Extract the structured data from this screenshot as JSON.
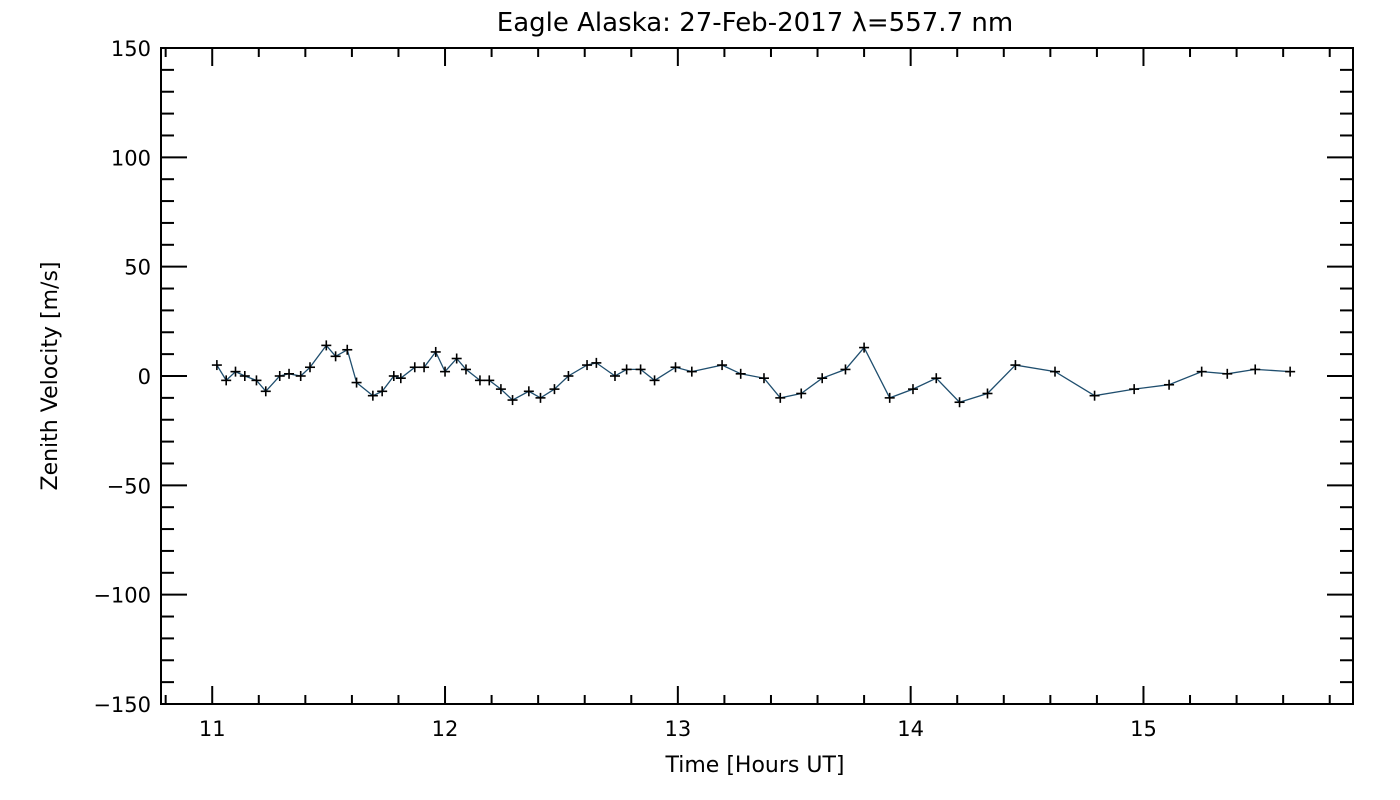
{
  "chart_data": {
    "type": "line",
    "title": "Eagle Alaska: 27-Feb-2017 λ=557.7 nm",
    "xlabel": "Time [Hours UT]",
    "ylabel": "Zenith Velocity [m/s]",
    "xlim": [
      10.78,
      15.9
    ],
    "ylim": [
      -150,
      150
    ],
    "x_ticks": [
      11,
      12,
      13,
      14,
      15
    ],
    "y_ticks": [
      -150,
      -100,
      -50,
      0,
      50,
      100,
      150
    ],
    "x_tick_labels": [
      "11",
      "12",
      "13",
      "14",
      "15"
    ],
    "y_tick_labels": [
      "−150",
      "−100",
      "−50",
      "0",
      "50",
      "100",
      "150"
    ],
    "grid": false,
    "line_color": "#1f4e6e",
    "marker": "plus",
    "series": [
      {
        "x": [
          11.02,
          11.06,
          11.1,
          11.14,
          11.19,
          11.23,
          11.29,
          11.33,
          11.38,
          11.42,
          11.49,
          11.53,
          11.58,
          11.62,
          11.69,
          11.73,
          11.78,
          11.81,
          11.87,
          11.91,
          11.96,
          12.0,
          12.05,
          12.09,
          12.15,
          12.19,
          12.24,
          12.29,
          12.36,
          12.41,
          12.47,
          12.53,
          12.61,
          12.65,
          12.73,
          12.78,
          12.84,
          12.9,
          12.99,
          13.06,
          13.19,
          13.27,
          13.37,
          13.44,
          13.53,
          13.62,
          13.72,
          13.8,
          13.91,
          14.01,
          14.11,
          14.21,
          14.33,
          14.45,
          14.62,
          14.79,
          14.96,
          15.11,
          15.25,
          15.36,
          15.48,
          15.63
        ],
        "y": [
          5,
          -2,
          2,
          0,
          -2,
          -7,
          0,
          1,
          0,
          4,
          14,
          9,
          12,
          -3,
          -9,
          -7,
          0,
          -1,
          4,
          4,
          11,
          2,
          8,
          3,
          -2,
          -2,
          -6,
          -11,
          -7,
          -10,
          -6,
          0,
          5,
          6,
          0,
          3,
          3,
          -2,
          4,
          2,
          5,
          1,
          -1,
          -10,
          -8,
          -1,
          3,
          13,
          -10,
          -6,
          -1,
          -12,
          -8,
          5,
          2,
          -9,
          -6,
          -4,
          2,
          1,
          3,
          2
        ]
      }
    ]
  }
}
